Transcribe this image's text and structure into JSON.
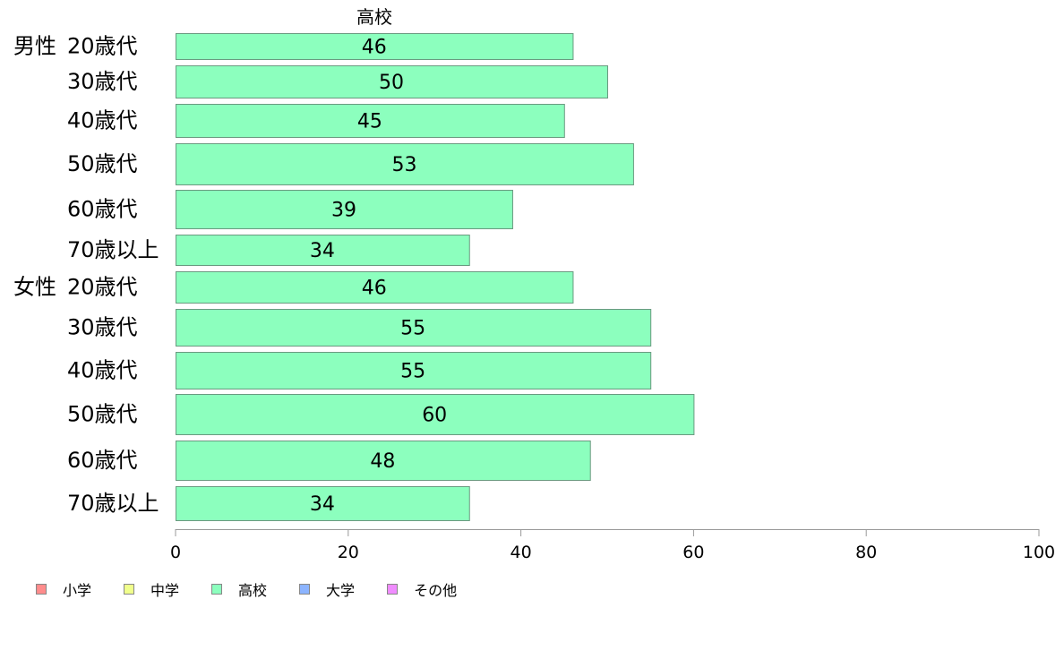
{
  "chart_data": {
    "type": "bar",
    "orientation": "horizontal",
    "title": "高校",
    "groups": [
      {
        "label": "男性",
        "categories": [
          "20歳代",
          "30歳代",
          "40歳代",
          "50歳代",
          "60歳代",
          "70歳以上"
        ],
        "values": [
          46,
          50,
          45,
          53,
          39,
          34
        ],
        "value_labels": [
          "46",
          "50",
          "45",
          "53",
          "39",
          "34"
        ]
      },
      {
        "label": "女性",
        "categories": [
          "20歳代",
          "30歳代",
          "40歳代",
          "50歳代",
          "60歳代",
          "70歳以上"
        ],
        "values": [
          46,
          55,
          55,
          60,
          48,
          34
        ],
        "value_labels": [
          "46",
          "55",
          "55",
          "60",
          "48",
          "34"
        ]
      }
    ],
    "xlim": [
      0,
      100
    ],
    "xticks": [
      0,
      20,
      40,
      60,
      80,
      100
    ],
    "xtick_labels": [
      "0",
      "20",
      "40",
      "60",
      "80",
      "100"
    ],
    "grid": false,
    "bar_color": "#8cffbe",
    "legend_position": "bottom-left",
    "legend": [
      {
        "label": "小学",
        "color": "#ff8c8c"
      },
      {
        "label": "中学",
        "color": "#f0ff8c"
      },
      {
        "label": "高校",
        "color": "#8cffbe"
      },
      {
        "label": "大学",
        "color": "#8cb4ff"
      },
      {
        "label": "その他",
        "color": "#f08cff"
      }
    ]
  }
}
